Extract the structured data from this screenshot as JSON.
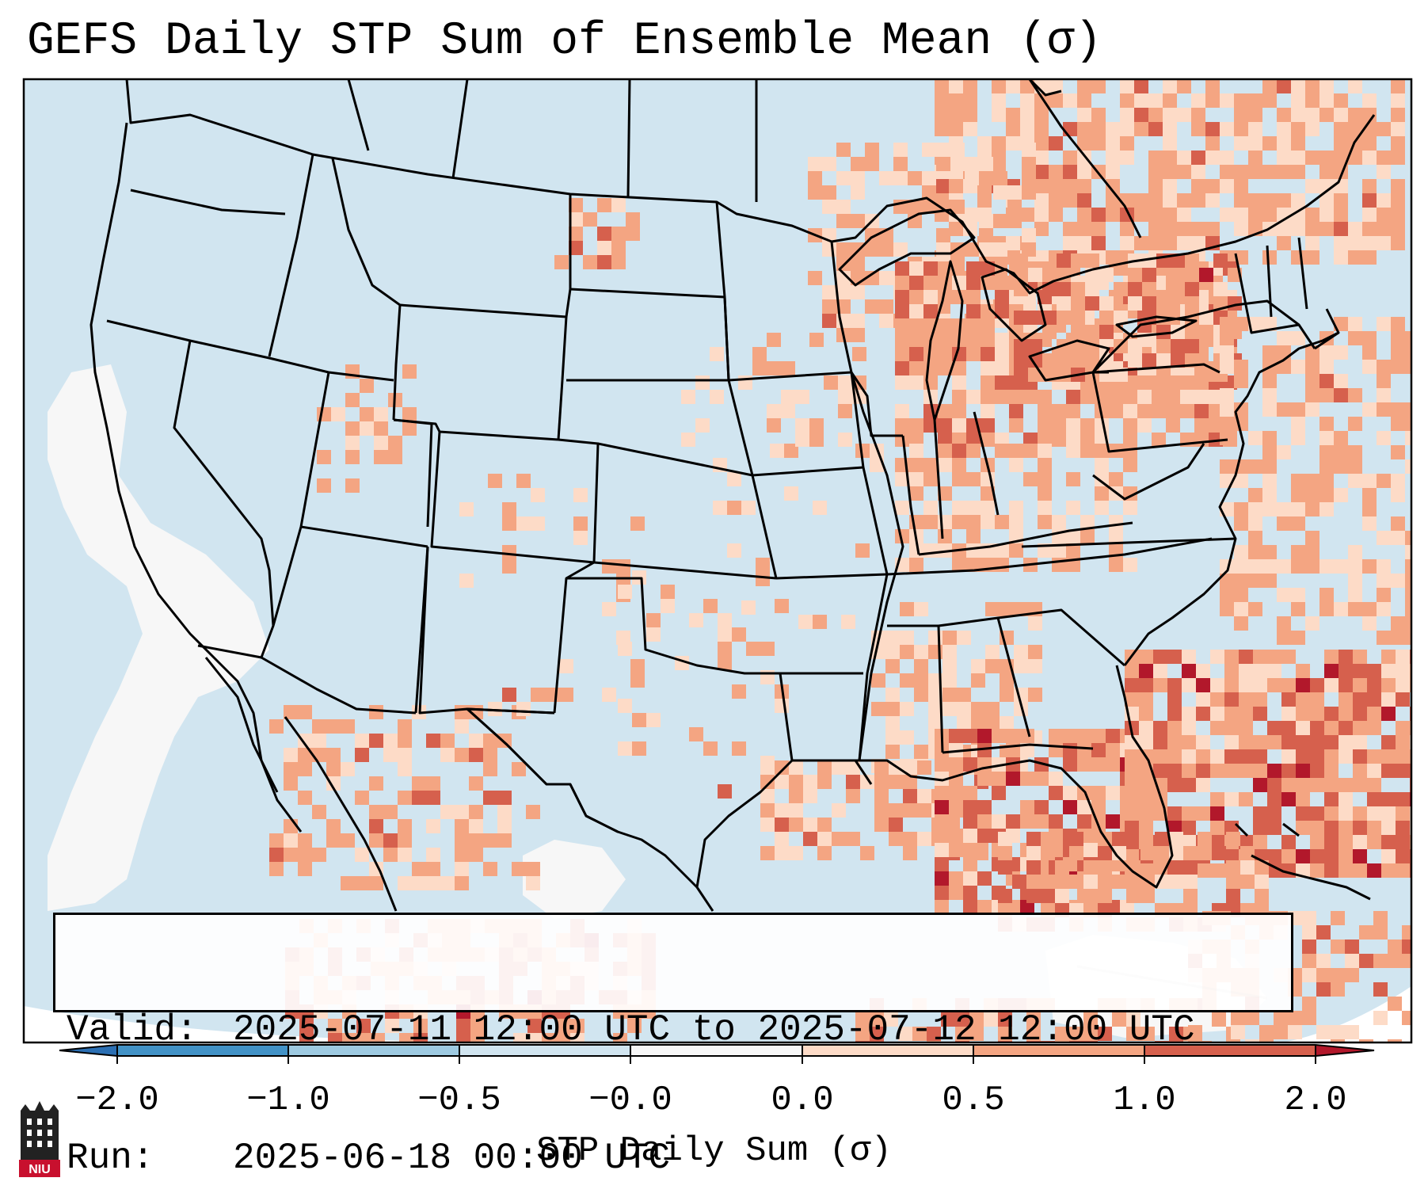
{
  "title": "GEFS Daily STP Sum of Ensemble Mean (σ)",
  "info": {
    "valid_label": "Valid:",
    "valid_value": "2025-07-11 12:00 UTC to 2025-07-12 12:00 UTC",
    "run_label": "Run:",
    "run_value": "2025-06-18 00:00 UTC"
  },
  "colorbar": {
    "label": "STP Daily Sum (σ)",
    "ticks": [
      "−2.0",
      "−1.0",
      "−0.5",
      "−0.0",
      "0.0",
      "0.5",
      "1.0",
      "2.0"
    ],
    "colors": {
      "below": "#2b6fb3",
      "band_m2_m1": "#4292c6",
      "band_m1_m05": "#9ecae1",
      "band_m05_m0": "#d1e5f0",
      "band_zero": "#f7f7f7",
      "band_0_05": "#fddbc7",
      "band_05_1": "#f4a582",
      "band_1_2": "#d6604d",
      "above": "#b2182b"
    }
  },
  "map": {
    "background": "#d1e5f0",
    "ocean_white": "#f7f7f7",
    "colors": {
      "light": "#fddbc7",
      "medium": "#f4a582",
      "strong": "#d6604d",
      "extreme": "#b2182b"
    }
  },
  "logo": {
    "text": "NIU",
    "color": "#c8102e"
  }
}
